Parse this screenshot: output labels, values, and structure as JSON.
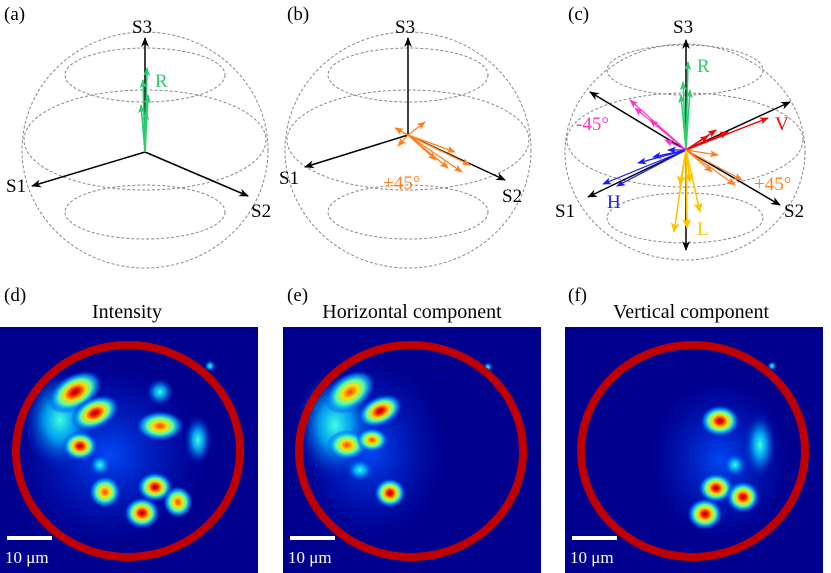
{
  "panels": {
    "a": {
      "label": "(a)",
      "axes": {
        "s1": "S1",
        "s2": "S2",
        "s3": "S3"
      },
      "state_label": "R"
    },
    "b": {
      "label": "(b)",
      "axes": {
        "s1": "S1",
        "s2": "S2",
        "s3": "S3"
      },
      "state_label": "+45°"
    },
    "c": {
      "label": "(c)",
      "axes": {
        "s1": "S1",
        "s2": "S2",
        "s3": "S3"
      },
      "states": {
        "R": "R",
        "V": "V",
        "m45": "-45°",
        "p45": "+45°",
        "H": "H",
        "L": "L"
      }
    },
    "d": {
      "label": "(d)",
      "title": "Intensity",
      "scale_bar": "10 μm"
    },
    "e": {
      "label": "(e)",
      "title": "Horizontal component",
      "scale_bar": "10 μm"
    },
    "f": {
      "label": "(f)",
      "title": "Vertical component",
      "scale_bar": "10 μm"
    }
  },
  "colors": {
    "R": "#2ecc71",
    "V": "#ff0000",
    "m45": "#ff33cc",
    "p45": "#ff7f1f",
    "H": "#1a1aff",
    "L": "#ffc400",
    "heatmap_background": "#00008f",
    "fiber_ring": "#c00000"
  },
  "colormap": "jet"
}
